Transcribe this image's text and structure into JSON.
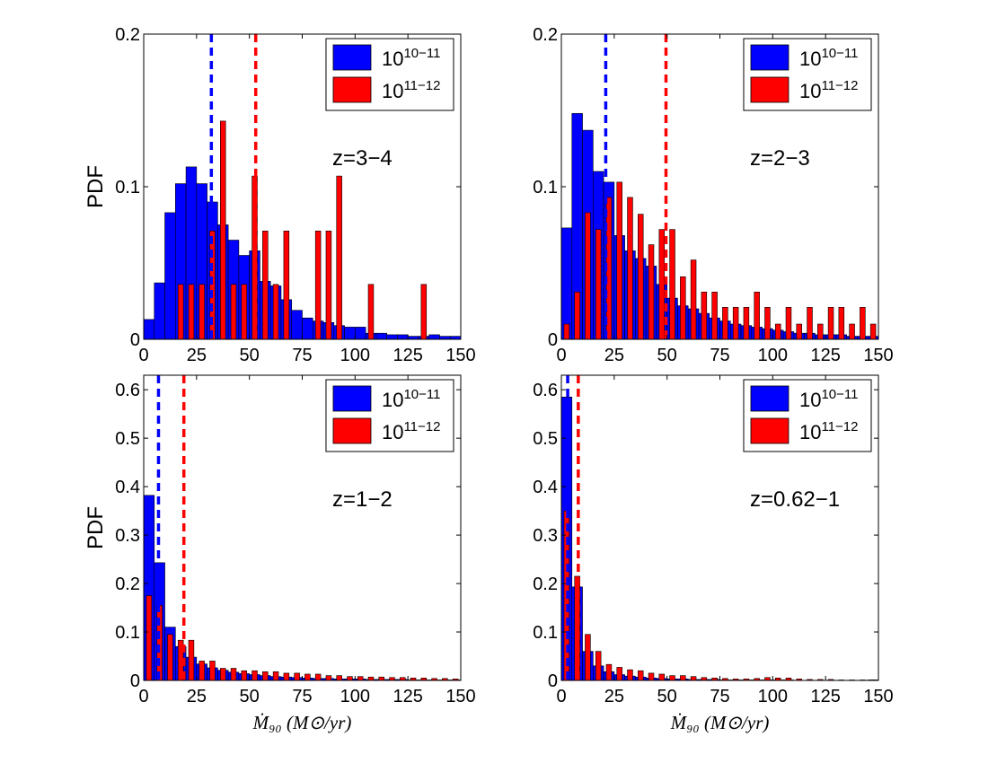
{
  "chart_data": [
    {
      "type": "bar",
      "annotation": "z=3−4",
      "ylabel": "PDF",
      "xlabel": "",
      "xlim": [
        0,
        150
      ],
      "ylim": [
        0,
        0.2
      ],
      "xticks": [
        "0",
        "25",
        "50",
        "75",
        "100",
        "125",
        "150"
      ],
      "yticks": [
        "0",
        "0.1",
        "0.2"
      ],
      "legend_position": "top-right",
      "series": [
        {
          "name": "10^{10−11}",
          "color": "#0000ff",
          "bin_width": 5,
          "align": "full",
          "x": [
            0,
            5,
            10,
            15,
            20,
            25,
            30,
            35,
            40,
            45,
            50,
            55,
            60,
            65,
            70,
            75,
            80,
            85,
            90,
            95,
            100,
            105,
            110,
            115,
            120,
            125,
            130,
            135,
            140,
            145
          ],
          "values": [
            0.013,
            0.037,
            0.083,
            0.102,
            0.113,
            0.102,
            0.09,
            0.075,
            0.065,
            0.055,
            0.058,
            0.038,
            0.035,
            0.026,
            0.019,
            0.014,
            0.012,
            0.011,
            0.009,
            0.008,
            0.008,
            0.004,
            0.004,
            0.003,
            0.003,
            0.002,
            0.002,
            0.003,
            0.002,
            0.002
          ]
        },
        {
          "name": "10^{11−12}",
          "color": "#ff0000",
          "bin_width": 5,
          "align": "half",
          "x": [
            15,
            20,
            25,
            30,
            35,
            40,
            45,
            50,
            55,
            60,
            65,
            70,
            75,
            80,
            85,
            90,
            95,
            100,
            105,
            110,
            115,
            120,
            125,
            130,
            135,
            140,
            145
          ],
          "values": [
            0.036,
            0.036,
            0.036,
            0.071,
            0.143,
            0.036,
            0.036,
            0.107,
            0.071,
            0.036,
            0.071,
            0,
            0,
            0.071,
            0.071,
            0.107,
            0,
            0,
            0.036,
            0,
            0,
            0,
            0,
            0.036,
            0,
            0,
            0
          ]
        }
      ],
      "vlines": [
        {
          "x": 32,
          "color": "#0000ff"
        },
        {
          "x": 53,
          "color": "#ff0000"
        }
      ]
    },
    {
      "type": "bar",
      "annotation": "z=2−3",
      "ylabel": "",
      "xlabel": "",
      "xlim": [
        0,
        150
      ],
      "ylim": [
        0,
        0.2
      ],
      "xticks": [
        "0",
        "25",
        "50",
        "75",
        "100",
        "125",
        "150"
      ],
      "yticks": [
        "0",
        "0.1",
        "0.2"
      ],
      "legend_position": "top-right",
      "series": [
        {
          "name": "10^{10−11}",
          "color": "#0000ff",
          "bin_width": 5,
          "align": "full",
          "x": [
            0,
            5,
            10,
            15,
            20,
            25,
            30,
            35,
            40,
            45,
            50,
            55,
            60,
            65,
            70,
            75,
            80,
            85,
            90,
            95,
            100,
            105,
            110,
            115,
            120,
            125,
            130,
            135,
            140,
            145
          ],
          "values": [
            0.073,
            0.148,
            0.137,
            0.11,
            0.103,
            0.068,
            0.058,
            0.053,
            0.048,
            0.036,
            0.027,
            0.022,
            0.02,
            0.017,
            0.014,
            0.012,
            0.01,
            0.009,
            0.008,
            0.007,
            0.006,
            0.005,
            0.004,
            0.004,
            0.003,
            0.003,
            0.003,
            0.002,
            0.002,
            0.002
          ]
        },
        {
          "name": "10^{11−12}",
          "color": "#ff0000",
          "bin_width": 5,
          "align": "half",
          "x": [
            0,
            5,
            10,
            15,
            20,
            25,
            30,
            35,
            40,
            45,
            50,
            55,
            60,
            65,
            70,
            75,
            80,
            85,
            90,
            95,
            100,
            105,
            110,
            115,
            120,
            125,
            130,
            135,
            140,
            145
          ],
          "values": [
            0.01,
            0.031,
            0.083,
            0.072,
            0.093,
            0.103,
            0.093,
            0.082,
            0.062,
            0.072,
            0.072,
            0.041,
            0.052,
            0.031,
            0.031,
            0.021,
            0.021,
            0.021,
            0.031,
            0.021,
            0.01,
            0.021,
            0.01,
            0.021,
            0.01,
            0.021,
            0.021,
            0.01,
            0.021,
            0.01
          ]
        }
      ],
      "vlines": [
        {
          "x": 21,
          "color": "#0000ff"
        },
        {
          "x": 49.5,
          "color": "#ff0000"
        }
      ]
    },
    {
      "type": "bar",
      "annotation": "z=1−2",
      "ylabel": "PDF",
      "xlabel": "Ṁ₉₀ (M⊙/yr)",
      "xlim": [
        0,
        150
      ],
      "ylim": [
        0,
        0.63
      ],
      "xticks": [
        "0",
        "25",
        "50",
        "75",
        "100",
        "125",
        "150"
      ],
      "yticks": [
        "0",
        "0.1",
        "0.2",
        "0.3",
        "0.4",
        "0.5",
        "0.6"
      ],
      "legend_position": "top-right",
      "series": [
        {
          "name": "10^{10−11}",
          "color": "#0000ff",
          "bin_width": 5,
          "align": "full",
          "x": [
            0,
            5,
            10,
            15,
            20,
            25,
            30,
            35,
            40,
            45,
            50,
            55,
            60,
            65,
            70,
            75,
            80,
            85,
            90,
            95,
            100,
            105,
            110,
            115,
            120,
            125,
            130,
            135,
            140,
            145
          ],
          "values": [
            0.382,
            0.243,
            0.11,
            0.07,
            0.048,
            0.034,
            0.026,
            0.021,
            0.017,
            0.014,
            0.012,
            0.01,
            0.008,
            0.007,
            0.006,
            0.005,
            0.004,
            0.004,
            0.003,
            0.003,
            0.003,
            0.002,
            0.002,
            0.002,
            0.002,
            0.001,
            0.001,
            0.001,
            0.001,
            0.001
          ]
        },
        {
          "name": "10^{11−12}",
          "color": "#ff0000",
          "bin_width": 5,
          "align": "half",
          "x": [
            0,
            5,
            10,
            15,
            20,
            25,
            30,
            35,
            40,
            45,
            50,
            55,
            60,
            65,
            70,
            75,
            80,
            85,
            90,
            95,
            100,
            105,
            110,
            115,
            120,
            125,
            130,
            135,
            140,
            145
          ],
          "values": [
            0.175,
            0.155,
            0.095,
            0.083,
            0.083,
            0.04,
            0.04,
            0.025,
            0.025,
            0.02,
            0.02,
            0.018,
            0.018,
            0.015,
            0.015,
            0.013,
            0.013,
            0.01,
            0.01,
            0.008,
            0.008,
            0.007,
            0.007,
            0.006,
            0.006,
            0.005,
            0.005,
            0.004,
            0.004,
            0.003
          ]
        }
      ],
      "vlines": [
        {
          "x": 7,
          "color": "#0000ff"
        },
        {
          "x": 19,
          "color": "#ff0000"
        }
      ]
    },
    {
      "type": "bar",
      "annotation": "z=0.62−1",
      "ylabel": "",
      "xlabel": "Ṁ₉₀ (M⊙/yr)",
      "xlim": [
        0,
        150
      ],
      "ylim": [
        0,
        0.63
      ],
      "xticks": [
        "0",
        "25",
        "50",
        "75",
        "100",
        "125",
        "150"
      ],
      "yticks": [
        "0",
        "0.1",
        "0.2",
        "0.3",
        "0.4",
        "0.5",
        "0.6"
      ],
      "legend_position": "top-right",
      "series": [
        {
          "name": "10^{10−11}",
          "color": "#0000ff",
          "bin_width": 5,
          "align": "full",
          "x": [
            0,
            5,
            10,
            15,
            20,
            25,
            30,
            35,
            40,
            45,
            50,
            55,
            60,
            65,
            70,
            75,
            80,
            85,
            90,
            95,
            100,
            105,
            110,
            115,
            120,
            125,
            130,
            135,
            140,
            145
          ],
          "values": [
            0.585,
            0.193,
            0.06,
            0.03,
            0.018,
            0.012,
            0.009,
            0.007,
            0.005,
            0.004,
            0.003,
            0.003,
            0.002,
            0.002,
            0.002,
            0.001,
            0.001,
            0.001,
            0.001,
            0.001,
            0.001,
            0.001,
            0,
            0,
            0,
            0,
            0,
            0,
            0,
            0.001
          ]
        },
        {
          "name": "10^{11−12}",
          "color": "#ff0000",
          "bin_width": 5,
          "align": "half",
          "x": [
            0,
            5,
            10,
            15,
            20,
            25,
            30,
            35,
            40,
            45,
            50,
            55,
            60,
            65,
            70,
            75,
            80,
            85,
            90,
            95,
            100,
            105,
            110,
            115,
            120,
            125,
            130,
            135,
            140,
            145
          ],
          "values": [
            0.35,
            0.215,
            0.095,
            0.06,
            0.033,
            0.027,
            0.022,
            0.02,
            0.015,
            0.013,
            0.01,
            0.01,
            0.008,
            0.006,
            0.005,
            0.004,
            0.003,
            0.003,
            0.004,
            0.006,
            0.005,
            0.005,
            0.003,
            0.002,
            0.002,
            0.002,
            0.001,
            0.001,
            0.001,
            0.001
          ]
        }
      ],
      "vlines": [
        {
          "x": 3,
          "color": "#0000ff"
        },
        {
          "x": 8,
          "color": "#ff0000"
        }
      ]
    }
  ]
}
